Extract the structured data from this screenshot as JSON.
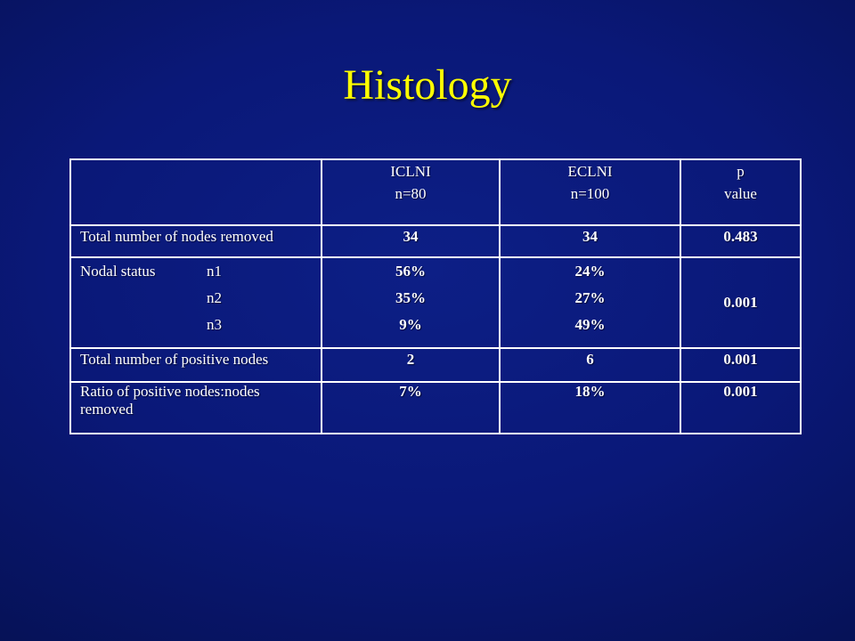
{
  "slide": {
    "title": "Histology"
  },
  "table": {
    "header": {
      "col1": {
        "line1": "ICLNI",
        "line2": "n=80"
      },
      "col2": {
        "line1": "ECLNI",
        "line2": "n=100"
      },
      "col3": {
        "line1": "p",
        "line2": "value"
      }
    },
    "rows": {
      "nodes_removed": {
        "label": "Total number of nodes removed",
        "iclni": "34",
        "eclni": "34",
        "p": "0.483"
      },
      "nodal_status": {
        "label": "Nodal status",
        "levels": [
          "n1",
          "n2",
          "n3"
        ],
        "iclni": [
          "56%",
          "35%",
          "9%"
        ],
        "eclni": [
          "24%",
          "27%",
          "49%"
        ],
        "p": "0.001"
      },
      "positive_nodes": {
        "label": "Total number of positive nodes",
        "iclni": "2",
        "eclni": "6",
        "p": "0.001"
      },
      "ratio": {
        "label": "Ratio of positive nodes:nodes removed",
        "iclni": "7%",
        "eclni": "18%",
        "p": "0.001"
      }
    }
  },
  "colors": {
    "title": "#ffff00",
    "text": "#ffffff",
    "background": "#0a1878"
  }
}
